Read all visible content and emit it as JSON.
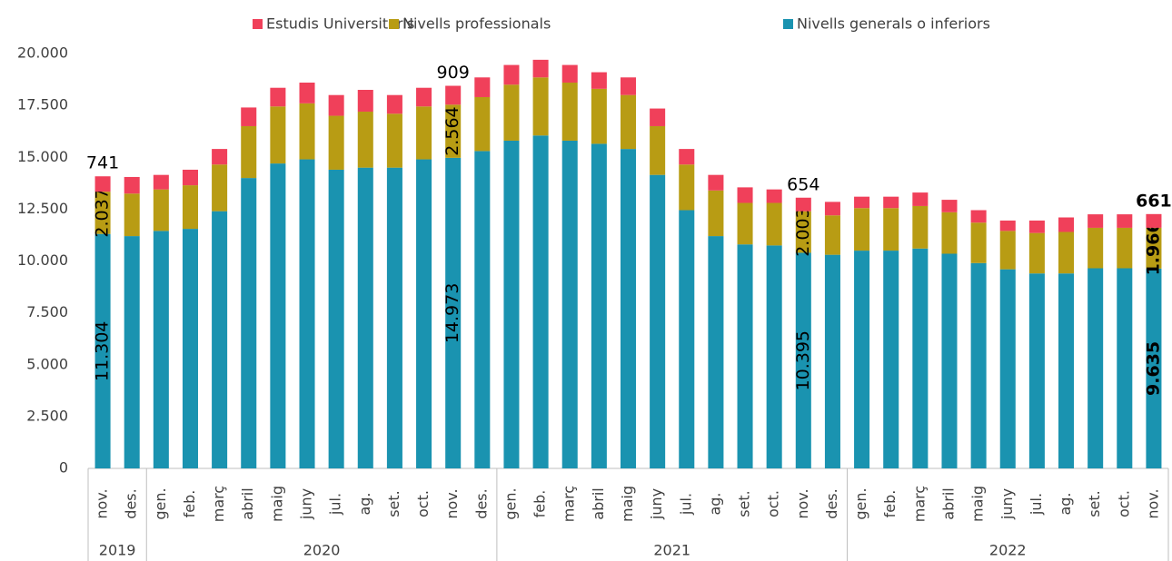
{
  "chart_data": {
    "type": "stacked_bar",
    "categories": [
      "nov.",
      "des.",
      "gen.",
      "feb.",
      "març",
      "abril",
      "maig",
      "juny",
      "jul.",
      "ag.",
      "set.",
      "oct.",
      "nov.",
      "des.",
      "gen.",
      "feb.",
      "març",
      "abril",
      "maig",
      "juny",
      "jul.",
      "ag.",
      "set.",
      "oct.",
      "nov.",
      "des.",
      "gen.",
      "feb.",
      "març",
      "abril",
      "maig",
      "juny",
      "jul.",
      "ag.",
      "set.",
      "oct.",
      "nov."
    ],
    "x_groups": [
      "2019",
      "2020",
      "2021",
      "2022"
    ],
    "ylim": [
      0,
      20000
    ],
    "yticks": [
      0,
      {
        "value": 2500,
        "label": "2.500"
      },
      {
        "value": 5000,
        "label": "5.000"
      },
      {
        "value": 7500,
        "label": "7.500"
      },
      {
        "value": 10000,
        "label": "10.000"
      },
      {
        "value": 12500,
        "label": "12.500"
      },
      {
        "value": 15000,
        "label": "15.000"
      },
      {
        "value": 17500,
        "label": "17.500"
      },
      {
        "value": 20000,
        "label": "20.000"
      }
    ],
    "series": [
      {
        "name": "Nivells generals o inferiors",
        "color": "#1a93b0",
        "values": [
          11304,
          11200,
          11450,
          11550,
          12400,
          14000,
          14700,
          14900,
          14400,
          14500,
          14500,
          14900,
          14973,
          15300,
          15800,
          16050,
          15800,
          15650,
          15400,
          14150,
          12450,
          11200,
          10800,
          10750,
          10395,
          10300,
          10500,
          10500,
          10600,
          10350,
          9900,
          9600,
          9400,
          9400,
          9650,
          9650,
          9635
        ],
        "value_labels": [
          "11.304",
          null,
          null,
          null,
          null,
          null,
          null,
          null,
          null,
          null,
          null,
          null,
          "14.973",
          null,
          null,
          null,
          null,
          null,
          null,
          null,
          null,
          null,
          null,
          null,
          "10.395",
          null,
          null,
          null,
          null,
          null,
          null,
          null,
          null,
          null,
          null,
          null,
          "9.635"
        ]
      },
      {
        "name": "Nivells professionals",
        "color": "#b89c14",
        "values": [
          2037,
          2050,
          2000,
          2100,
          2250,
          2500,
          2750,
          2700,
          2600,
          2700,
          2600,
          2550,
          2564,
          2600,
          2700,
          2800,
          2800,
          2650,
          2600,
          2350,
          2200,
          2200,
          2000,
          2050,
          2003,
          1900,
          2050,
          2050,
          2050,
          2000,
          1950,
          1850,
          1950,
          2000,
          1950,
          1950,
          1966
        ],
        "value_labels": [
          "2.037",
          null,
          null,
          null,
          null,
          null,
          null,
          null,
          null,
          null,
          null,
          null,
          "2.564",
          null,
          null,
          null,
          null,
          null,
          null,
          null,
          null,
          null,
          null,
          null,
          "2.003",
          null,
          null,
          null,
          null,
          null,
          null,
          null,
          null,
          null,
          null,
          null,
          "1.966"
        ]
      },
      {
        "name": "Estudis Universitaris",
        "color": "#f0405a",
        "values": [
          741,
          800,
          700,
          750,
          750,
          900,
          900,
          1000,
          1000,
          1050,
          900,
          900,
          909,
          950,
          950,
          850,
          850,
          800,
          850,
          850,
          750,
          750,
          750,
          650,
          654,
          650,
          550,
          550,
          650,
          600,
          600,
          500,
          600,
          700,
          650,
          650,
          661
        ],
        "value_labels": [
          "741",
          null,
          null,
          null,
          null,
          null,
          null,
          null,
          null,
          null,
          null,
          null,
          "909",
          null,
          null,
          null,
          null,
          null,
          null,
          null,
          null,
          null,
          null,
          null,
          "654",
          null,
          null,
          null,
          null,
          null,
          null,
          null,
          null,
          null,
          null,
          null,
          "661"
        ]
      }
    ]
  }
}
